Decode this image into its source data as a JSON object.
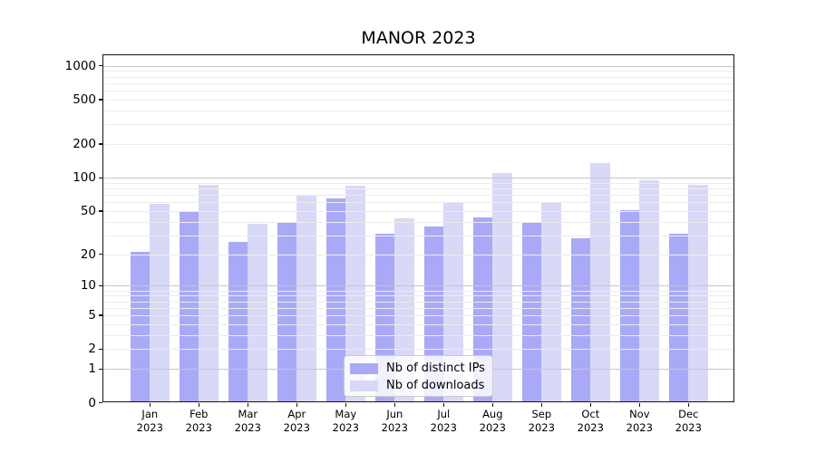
{
  "chart_data": {
    "type": "bar",
    "title": "MANOR 2023",
    "categories": [
      "Jan 2023",
      "Feb 2023",
      "Mar 2023",
      "Apr 2023",
      "May 2023",
      "Jun 2023",
      "Jul 2023",
      "Aug 2023",
      "Sep 2023",
      "Oct 2023",
      "Nov 2023",
      "Dec 2023"
    ],
    "series": [
      {
        "name": "Nb of distinct IPs",
        "key": "ips",
        "color": "#a9a9f7",
        "values": [
          21,
          50,
          26,
          40,
          65,
          31,
          36,
          44,
          40,
          28,
          51,
          31
        ]
      },
      {
        "name": "Nb of downloads",
        "key": "downloads",
        "color": "#d8d8f7",
        "values": [
          58,
          86,
          38,
          70,
          85,
          43,
          60,
          110,
          60,
          136,
          95,
          87
        ]
      }
    ],
    "y_axis": {
      "scale": "log1p",
      "tick_labels": [
        0,
        1,
        2,
        5,
        10,
        20,
        50,
        100,
        200,
        500,
        1000
      ],
      "major_gridlines": [
        1,
        10,
        100,
        1000
      ],
      "minor_grid_subs": [
        2,
        3,
        4,
        5,
        6,
        7,
        8,
        9
      ],
      "range": [
        0,
        1256
      ]
    },
    "grid": "on",
    "legend_position": "lower-center"
  },
  "colors": {
    "bar_ips": "#a9a9f7",
    "bar_downloads": "#d8d8f7",
    "grid_major": "#c7c7c7",
    "grid_minor": "#ececec",
    "spine": "#151515",
    "text": "#000000",
    "legend_border": "#cccccc"
  }
}
